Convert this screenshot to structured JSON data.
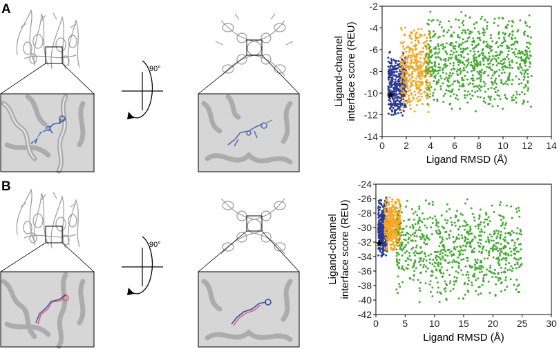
{
  "panels": [
    {
      "letter": "A",
      "rotation_label": "90°",
      "chart": {
        "type": "scatter",
        "xlabel": "Ligand RMSD (Å)",
        "ylabel_line1": "Ligand-channel",
        "ylabel_line2": "interface score (REU)",
        "xlim": [
          0,
          14
        ],
        "ylim": [
          -14,
          -2
        ],
        "xticks": [
          "0",
          "2",
          "4",
          "6",
          "8",
          "10",
          "12",
          "14"
        ],
        "yticks": [
          "-14",
          "-12",
          "-10",
          "-8",
          "-6",
          "-4",
          "-2"
        ],
        "best_model": {
          "x": 0.7,
          "y": -10.2
        },
        "clusters": [
          {
            "color": "#2b3990",
            "x_range": [
              0.5,
              2.0
            ],
            "y_range": [
              -12.6,
              -6.0
            ]
          },
          {
            "color": "#f5a623",
            "x_range": [
              1.5,
              4.0
            ],
            "y_range": [
              -12.0,
              -3.6
            ]
          },
          {
            "color": "#44aa33",
            "x_range": [
              3.6,
              12.4
            ],
            "y_range": [
              -11.8,
              -2.4
            ]
          }
        ]
      }
    },
    {
      "letter": "B",
      "rotation_label": "90°",
      "chart": {
        "type": "scatter",
        "xlabel": "Ligand RMSD (Å)",
        "ylabel_line1": "Ligand-channel",
        "ylabel_line2": "interface score (REU)",
        "xlim": [
          0,
          30
        ],
        "ylim": [
          -42,
          -24
        ],
        "xticks": [
          "0",
          "5",
          "10",
          "15",
          "20",
          "25",
          "30"
        ],
        "yticks": [
          "-42",
          "-40",
          "-38",
          "-36",
          "-34",
          "-32",
          "-30",
          "-28",
          "-26",
          "-24"
        ],
        "best_model": {
          "x": 0.6,
          "y": -32.2
        },
        "clusters": [
          {
            "color": "#2b3990",
            "x_range": [
              0.4,
              2.0
            ],
            "y_range": [
              -34.3,
              -25.8
            ]
          },
          {
            "color": "#f5a623",
            "x_range": [
              1.5,
              4.2
            ],
            "y_range": [
              -33.5,
              -25.6
            ]
          },
          {
            "color": "#44aa33",
            "x_range": [
              3.5,
              25.0
            ],
            "y_range": [
              -40.5,
              -25.5
            ]
          }
        ]
      }
    }
  ]
}
